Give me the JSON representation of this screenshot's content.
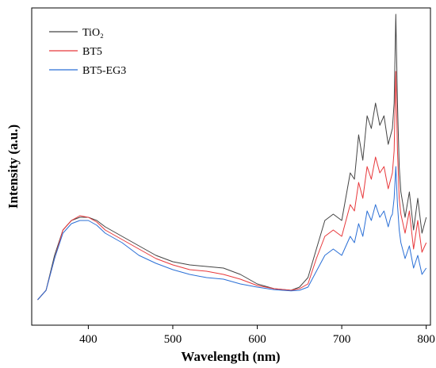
{
  "chart_data": {
    "type": "line",
    "title": "",
    "xlabel": "Wavelength (nm)",
    "ylabel": "Intensity (a.u.)",
    "xlim": [
      333,
      805
    ],
    "ylim": [
      0,
      1
    ],
    "xticks": [
      "400",
      "500",
      "600",
      "700",
      "800"
    ],
    "xtick_values": [
      400,
      500,
      600,
      700,
      800
    ],
    "y_tick_labels_shown": false,
    "grid": false,
    "legend_position": "top-left",
    "series": [
      {
        "name": "TiO₂",
        "color": "#444444",
        "x": [
          340,
          350,
          360,
          370,
          380,
          390,
          400,
          410,
          420,
          440,
          460,
          480,
          500,
          520,
          540,
          560,
          580,
          600,
          620,
          640,
          650,
          660,
          670,
          680,
          690,
          700,
          710,
          715,
          720,
          725,
          730,
          735,
          740,
          745,
          750,
          755,
          758,
          760,
          762,
          764,
          766,
          768,
          770,
          775,
          780,
          785,
          790,
          795,
          800
        ],
        "y": [
          0.08,
          0.11,
          0.22,
          0.3,
          0.33,
          0.34,
          0.34,
          0.33,
          0.31,
          0.28,
          0.25,
          0.22,
          0.2,
          0.19,
          0.185,
          0.18,
          0.16,
          0.13,
          0.115,
          0.11,
          0.12,
          0.15,
          0.24,
          0.33,
          0.35,
          0.33,
          0.48,
          0.46,
          0.6,
          0.52,
          0.66,
          0.62,
          0.7,
          0.63,
          0.66,
          0.57,
          0.6,
          0.62,
          0.7,
          0.98,
          0.7,
          0.5,
          0.42,
          0.34,
          0.42,
          0.3,
          0.4,
          0.29,
          0.34
        ]
      },
      {
        "name": "BT5",
        "color": "#e8383b",
        "x": [
          340,
          350,
          360,
          370,
          380,
          390,
          400,
          410,
          420,
          440,
          460,
          480,
          500,
          520,
          540,
          560,
          580,
          600,
          620,
          640,
          650,
          660,
          670,
          680,
          690,
          700,
          710,
          715,
          720,
          725,
          730,
          735,
          740,
          745,
          750,
          755,
          758,
          760,
          762,
          764,
          766,
          768,
          770,
          775,
          780,
          785,
          790,
          795,
          800
        ],
        "y": [
          0.08,
          0.11,
          0.21,
          0.3,
          0.33,
          0.345,
          0.34,
          0.325,
          0.3,
          0.27,
          0.24,
          0.21,
          0.19,
          0.175,
          0.17,
          0.16,
          0.145,
          0.125,
          0.115,
          0.11,
          0.115,
          0.13,
          0.21,
          0.28,
          0.3,
          0.28,
          0.38,
          0.36,
          0.45,
          0.4,
          0.5,
          0.46,
          0.53,
          0.48,
          0.5,
          0.43,
          0.46,
          0.48,
          0.55,
          0.8,
          0.55,
          0.4,
          0.35,
          0.29,
          0.36,
          0.24,
          0.33,
          0.23,
          0.26
        ]
      },
      {
        "name": "BT5-EG3",
        "color": "#2a6fd6",
        "x": [
          340,
          350,
          360,
          370,
          380,
          390,
          400,
          410,
          420,
          440,
          460,
          480,
          500,
          520,
          540,
          560,
          580,
          600,
          620,
          640,
          650,
          660,
          670,
          680,
          690,
          700,
          710,
          715,
          720,
          725,
          730,
          735,
          740,
          745,
          750,
          755,
          758,
          760,
          762,
          764,
          766,
          768,
          770,
          775,
          780,
          785,
          790,
          795,
          800
        ],
        "y": [
          0.08,
          0.11,
          0.21,
          0.29,
          0.32,
          0.33,
          0.33,
          0.315,
          0.29,
          0.26,
          0.22,
          0.195,
          0.175,
          0.16,
          0.15,
          0.145,
          0.13,
          0.12,
          0.112,
          0.108,
          0.11,
          0.12,
          0.17,
          0.22,
          0.24,
          0.22,
          0.28,
          0.26,
          0.32,
          0.28,
          0.36,
          0.33,
          0.38,
          0.34,
          0.36,
          0.31,
          0.34,
          0.35,
          0.4,
          0.5,
          0.38,
          0.3,
          0.26,
          0.21,
          0.25,
          0.18,
          0.22,
          0.16,
          0.18
        ]
      }
    ]
  }
}
